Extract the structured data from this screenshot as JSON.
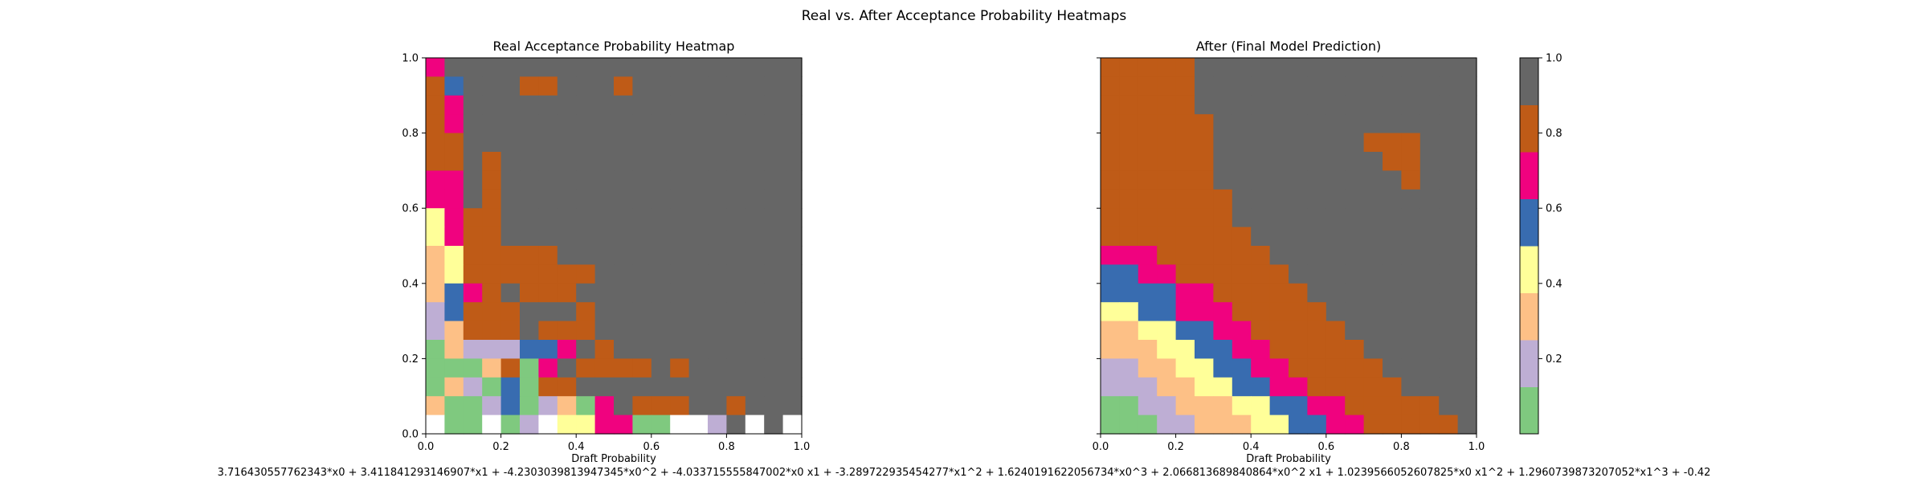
{
  "figure": {
    "title": "Real vs. After Acceptance Probability Heatmaps",
    "formula": "3.716430557762343*x0 + 3.411841293146907*x1 + -4.2303039813947345*x0^2 + -4.033715555847002*x0 x1 + -3.289722935454277*x1^2 + 1.6240191622056734*x0^3 + 2.066813689840864*x0^2 x1 + 1.0239566052607825*x0 x1^2 + 1.2960739873207052*x1^3 + -0.42"
  },
  "colormap": {
    "name": "Accent",
    "bins": [
      {
        "from": 0.0,
        "to": 0.125,
        "color": "#7fc97f"
      },
      {
        "from": 0.125,
        "to": 0.25,
        "color": "#beaed4"
      },
      {
        "from": 0.25,
        "to": 0.375,
        "color": "#fdc086"
      },
      {
        "from": 0.375,
        "to": 0.5,
        "color": "#ffff99"
      },
      {
        "from": 0.5,
        "to": 0.625,
        "color": "#386cb0"
      },
      {
        "from": 0.625,
        "to": 0.75,
        "color": "#f0027f"
      },
      {
        "from": 0.75,
        "to": 0.875,
        "color": "#bf5b17"
      },
      {
        "from": 0.875,
        "to": 1.0,
        "color": "#666666"
      }
    ],
    "empty_color": "#ffffff"
  },
  "chart_data": [
    {
      "type": "heatmap",
      "title": "Real Acceptance Probability Heatmap",
      "xlabel": "Draft Probability",
      "ylabel": "",
      "xlim": [
        0,
        1
      ],
      "ylim": [
        0,
        1
      ],
      "xticks": [
        "0.0",
        "0.2",
        "0.4",
        "0.6",
        "0.8",
        "1.0"
      ],
      "yticks": [
        "0.0",
        "0.2",
        "0.4",
        "0.6",
        "0.8",
        "1.0"
      ],
      "bins": 20,
      "row_order": "top-to-bottom",
      "legend": "0–7 = colormap bin index, W = no data",
      "rows": [
        "57777777777777777777",
        "64777667776777777777",
        "65777777777777777777",
        "65777777777777777777",
        "66777777777777777777",
        "66767777777777777777",
        "55767777777777777777",
        "55767777777777777777",
        "35667777777777777777",
        "35667777777777777777",
        "23666667777777777777",
        "23666666677777777777",
        "24567666777777777777",
        "14666777677777777777",
        "12666766677777777777",
        "02111445767777777777",
        "00026057666676777777",
        "02104066777777777777",
        "20014012057666776777",
        "W00W01W335500WW17W7W"
      ]
    },
    {
      "type": "heatmap",
      "title": "After (Final Model Prediction)",
      "xlabel": "Draft Probability",
      "ylabel": "",
      "xlim": [
        0,
        1
      ],
      "ylim": [
        0,
        1
      ],
      "xticks": [
        "0.0",
        "0.2",
        "0.4",
        "0.6",
        "0.8",
        "1.0"
      ],
      "yticks": [],
      "bins": 20,
      "row_order": "top-to-bottom",
      "legend": "0–7 = colormap bin index",
      "rows": [
        "66666777777777777777",
        "66666777777777777777",
        "66666777777777777777",
        "66666677777777777777",
        "66666677777777666777",
        "66666677777777766777",
        "66666677777777776777",
        "66666667777777777777",
        "66666667777777777777",
        "66666666777777777777",
        "55566666677777777777",
        "44556666667777777777",
        "44445566666777777777",
        "33445556666677777777",
        "22334455666667777777",
        "22233445566666777777",
        "11223344556666677777",
        "11122334455666667777",
        "00112223344556666677",
        "00011222334455666667"
      ]
    }
  ],
  "colorbar": {
    "ticks": [
      "0.2",
      "0.4",
      "0.6",
      "0.8",
      "1.0"
    ],
    "tick_values": [
      0.2,
      0.4,
      0.6,
      0.8,
      1.0
    ]
  }
}
